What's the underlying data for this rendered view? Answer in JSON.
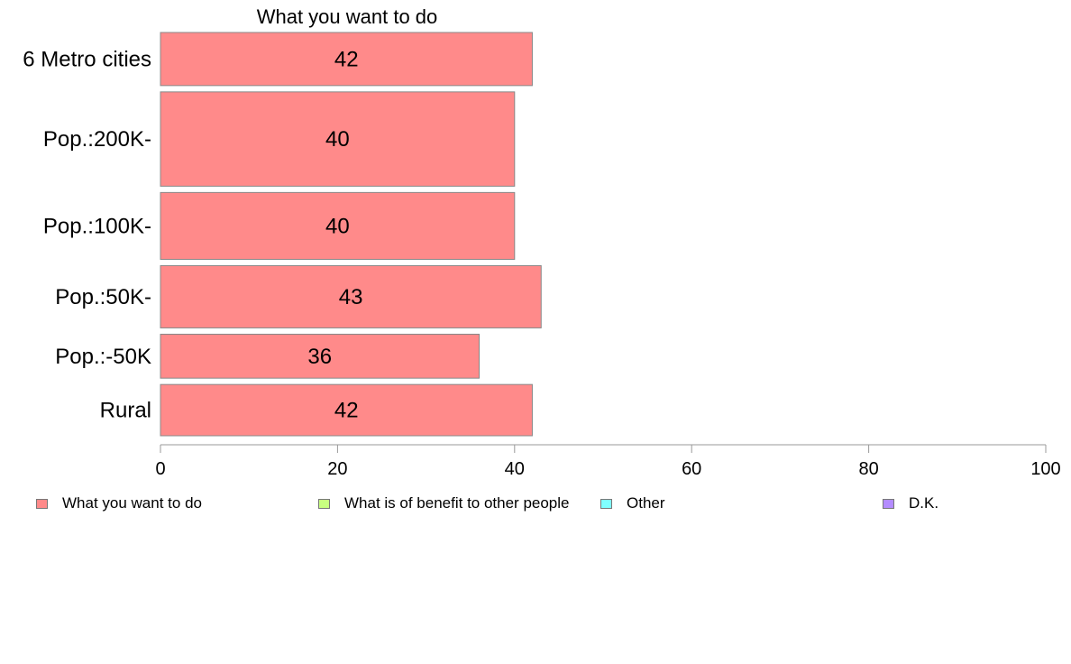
{
  "chart_data": {
    "type": "bar",
    "orientation": "horizontal",
    "title": "What you want to do",
    "categories": [
      "6 Metro cities",
      "Pop.:200K-",
      "Pop.:100K-",
      "Pop.:50K-",
      "Pop.:-50K",
      "Rural"
    ],
    "series": [
      {
        "name": "What you want to do",
        "values": [
          42,
          40,
          40,
          43,
          36,
          42
        ],
        "labels": [
          "42",
          "40",
          "40",
          "43",
          "36",
          "42"
        ],
        "color": "#ff8a8a"
      }
    ],
    "relative_bar_widths": [
      58,
      103,
      73,
      68,
      48,
      56
    ],
    "xlim": [
      0,
      100
    ],
    "xticks": [
      0,
      20,
      40,
      60,
      80,
      100
    ],
    "xtick_labels": [
      "0",
      "20",
      "40",
      "60",
      "80",
      "100"
    ],
    "grid": false,
    "legend_position": "bottom",
    "legend": [
      {
        "label": "What you want to do",
        "color": "#ff8a8a"
      },
      {
        "label": "What is of benefit to other people",
        "color": "#c8ff80"
      },
      {
        "label": "Other",
        "color": "#80ffff"
      },
      {
        "label": "D.K.",
        "color": "#b48cff"
      }
    ]
  }
}
